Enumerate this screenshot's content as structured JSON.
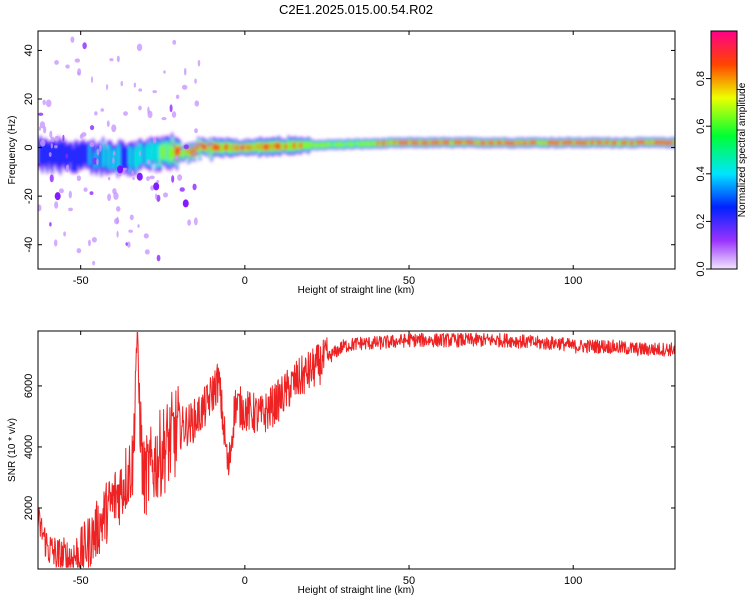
{
  "title": "C2E1.2025.015.00.54.R02",
  "chart_data": [
    {
      "type": "heatmap",
      "xlabel": "Height of straight line (km)",
      "ylabel": "Frequency (Hz)",
      "xlim": [
        -63,
        131
      ],
      "ylim": [
        -50,
        48
      ],
      "xticks": [
        -50,
        0,
        50,
        100
      ],
      "yticks": [
        -40,
        -20,
        0,
        20,
        40
      ],
      "colorbar": {
        "label": "Normalized spectral amplitude",
        "range": [
          0,
          1
        ],
        "ticks": [
          "0.0",
          "0.2",
          "0.4",
          "0.6",
          "0.8"
        ],
        "tick_values": [
          0.0,
          0.2,
          0.4,
          0.6,
          0.8
        ],
        "colors": [
          "#f2e6ff",
          "#7a00ff",
          "#0033ff",
          "#00e5ff",
          "#00ff33",
          "#eeff00",
          "#ff4400",
          "#ff0088"
        ]
      },
      "main_ridge": {
        "description_x_y": [
          [
            -63,
            -3
          ],
          [
            -45,
            -4
          ],
          [
            -35,
            -4
          ],
          [
            -30,
            -3
          ],
          [
            -20,
            -2
          ],
          [
            -10,
            0
          ],
          [
            0,
            0
          ],
          [
            20,
            1
          ],
          [
            50,
            2
          ],
          [
            100,
            2
          ],
          [
            131,
            2
          ]
        ],
        "peak_amplitude": [
          [
            -63,
            0.35
          ],
          [
            -30,
            0.5
          ],
          [
            -20,
            0.9
          ],
          [
            0,
            0.95
          ],
          [
            30,
            0.7
          ],
          [
            50,
            0.95
          ],
          [
            131,
            0.95
          ]
        ]
      }
    },
    {
      "type": "line",
      "xlabel": "Height of straight line (km)",
      "ylabel": "SNR (10 * v/v)",
      "xlim": [
        -63,
        131
      ],
      "ylim": [
        0,
        7800
      ],
      "xticks": [
        -50,
        0,
        50,
        100
      ],
      "yticks": [
        2000,
        4000,
        6000
      ],
      "line_color": "#ee2222",
      "series": [
        {
          "x": [
            -63,
            -60,
            -57,
            -54,
            -50,
            -46,
            -42,
            -38,
            -34,
            -33,
            -31,
            -28,
            -25,
            -22,
            -20,
            -16,
            -12,
            -8,
            -5,
            -3,
            0,
            5,
            10,
            15,
            20,
            25,
            30,
            35,
            40,
            50,
            60,
            70,
            80,
            90,
            96,
            100,
            110,
            120,
            131
          ],
          "values": [
            1600,
            700,
            400,
            300,
            500,
            1100,
            1900,
            2600,
            3500,
            7600,
            2900,
            3400,
            3900,
            4300,
            4600,
            4800,
            5300,
            6200,
            3200,
            5400,
            5200,
            5000,
            5500,
            6100,
            6500,
            6900,
            7300,
            7400,
            7400,
            7500,
            7500,
            7500,
            7500,
            7400,
            7400,
            7300,
            7300,
            7200,
            7200
          ]
        }
      ]
    }
  ]
}
